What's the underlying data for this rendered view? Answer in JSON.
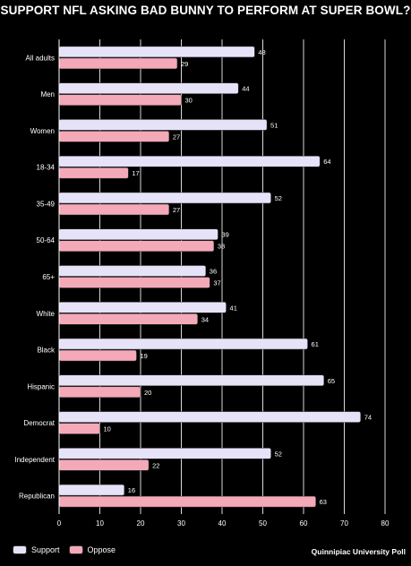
{
  "chart_data": {
    "type": "bar",
    "orientation": "horizontal",
    "title": "SUPPORT NFL ASKING BAD BUNNY TO PERFORM AT SUPER BOWL?",
    "categories": [
      "All adults",
      "Men",
      "Women",
      "18-34",
      "35-49",
      "50-64",
      "65+",
      "White",
      "Black",
      "Hispanic",
      "Democrat",
      "Independent",
      "Republican"
    ],
    "series": [
      {
        "name": "Support",
        "color": "#e6e3f9",
        "values": [
          48,
          44,
          51,
          64,
          52,
          39,
          36,
          41,
          61,
          65,
          74,
          52,
          16
        ]
      },
      {
        "name": "Oppose",
        "color": "#f4a9b8",
        "values": [
          29,
          30,
          27,
          17,
          27,
          38,
          37,
          34,
          19,
          20,
          10,
          22,
          63
        ]
      }
    ],
    "xlim": [
      0,
      80
    ],
    "xticks": [
      0,
      10,
      20,
      30,
      40,
      50,
      60,
      70,
      80
    ],
    "grid": true,
    "legend_position": "bottom-left",
    "data_labels": true
  },
  "source": "Quinnipiac University Poll"
}
